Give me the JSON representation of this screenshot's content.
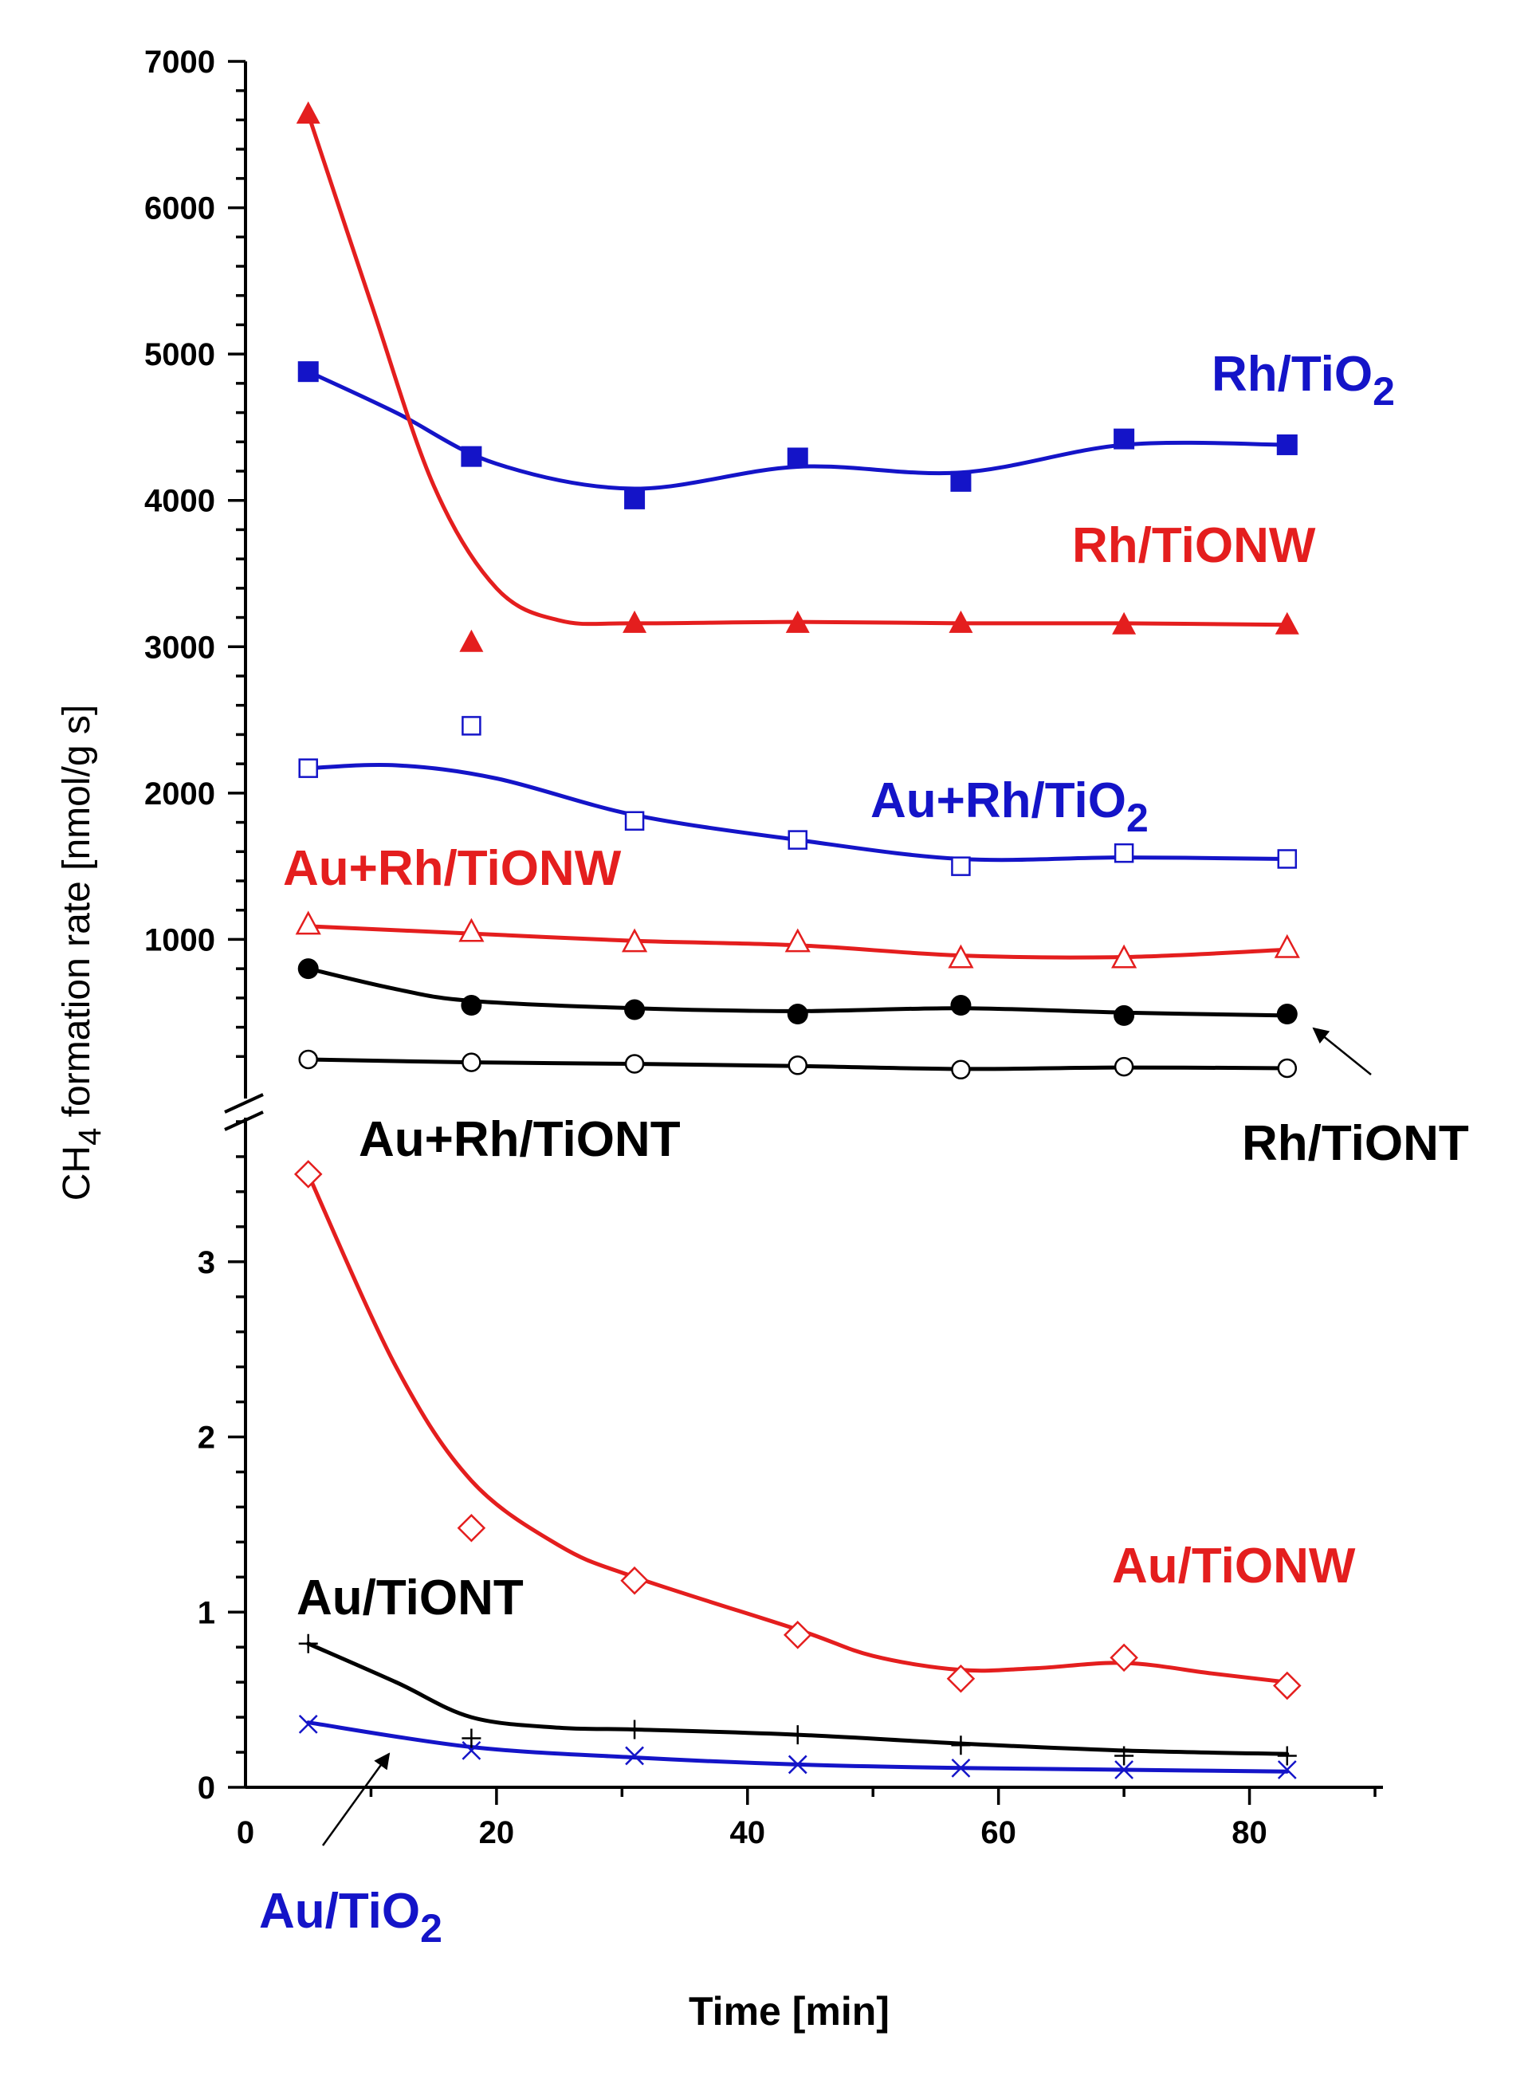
{
  "chart_data": {
    "type": "line",
    "title": "",
    "xlabel": "Time [min]",
    "ylabel_parts": [
      "CH",
      "4",
      " formation rate [nmol/g s]"
    ],
    "xlim": [
      0,
      90
    ],
    "x_ticks": [
      "0",
      "20",
      "40",
      "60",
      "80"
    ],
    "x_tick_values": [
      0,
      20,
      40,
      60,
      80
    ],
    "y_axis_broken": true,
    "upper_panel": {
      "ylim": [
        0,
        7000
      ],
      "y_ticks": [
        "1000",
        "2000",
        "3000",
        "4000",
        "5000",
        "6000",
        "7000"
      ],
      "y_tick_values": [
        1000,
        2000,
        3000,
        4000,
        5000,
        6000,
        7000
      ]
    },
    "lower_panel": {
      "ylim": [
        0,
        3.9
      ],
      "y_ticks": [
        "0",
        "1",
        "2",
        "3"
      ],
      "y_tick_values": [
        0,
        1,
        2,
        3
      ]
    },
    "x": [
      5,
      18,
      31,
      44,
      57,
      70,
      83
    ],
    "series": [
      {
        "id": "rh-tio2",
        "name": "Rh/TiO2",
        "label_parts": [
          "Rh/TiO",
          "2"
        ],
        "panel": "upper",
        "color": "#1414c8",
        "marker": "square-filled",
        "values": [
          4880,
          4300,
          4010,
          4290,
          4130,
          4420,
          4380
        ],
        "fit": [
          [
            5,
            4880
          ],
          [
            12,
            4600
          ],
          [
            20,
            4250
          ],
          [
            31,
            4080
          ],
          [
            44,
            4230
          ],
          [
            57,
            4190
          ],
          [
            70,
            4380
          ],
          [
            83,
            4380
          ]
        ]
      },
      {
        "id": "rh-tionw",
        "name": "Rh/TiONW",
        "label_parts": [
          "Rh/TiONW"
        ],
        "panel": "upper",
        "color": "#e41e1e",
        "marker": "triangle-filled",
        "values": [
          6640,
          3030,
          3160,
          3160,
          3160,
          3150,
          3150
        ],
        "fit": [
          [
            5,
            6640
          ],
          [
            10,
            5350
          ],
          [
            15,
            4100
          ],
          [
            20,
            3400
          ],
          [
            25,
            3180
          ],
          [
            31,
            3160
          ],
          [
            44,
            3170
          ],
          [
            57,
            3160
          ],
          [
            70,
            3160
          ],
          [
            83,
            3150
          ]
        ]
      },
      {
        "id": "au-rh-tio2",
        "name": "Au+Rh/TiO2",
        "label_parts": [
          "Au+Rh/TiO",
          "2"
        ],
        "panel": "upper",
        "color": "#1414c8",
        "marker": "square-open",
        "values": [
          2170,
          2460,
          1810,
          1680,
          1500,
          1590,
          1550
        ],
        "fit": [
          [
            5,
            2170
          ],
          [
            12,
            2190
          ],
          [
            20,
            2100
          ],
          [
            31,
            1850
          ],
          [
            44,
            1680
          ],
          [
            57,
            1550
          ],
          [
            70,
            1560
          ],
          [
            83,
            1550
          ]
        ]
      },
      {
        "id": "au-rh-tionw",
        "name": "Au+Rh/TiONW",
        "label_parts": [
          "Au+Rh/TiONW"
        ],
        "panel": "upper",
        "color": "#e41e1e",
        "marker": "triangle-open",
        "values": [
          1100,
          1050,
          980,
          980,
          870,
          870,
          940
        ],
        "fit": [
          [
            5,
            1090
          ],
          [
            18,
            1040
          ],
          [
            31,
            990
          ],
          [
            44,
            960
          ],
          [
            57,
            890
          ],
          [
            70,
            880
          ],
          [
            83,
            930
          ]
        ]
      },
      {
        "id": "rh-tiont",
        "name": "Rh/TiONT",
        "label_parts": [
          "Rh/TiONT"
        ],
        "panel": "upper",
        "color": "#000000",
        "marker": "circle-filled",
        "values": [
          800,
          550,
          520,
          490,
          550,
          480,
          490
        ],
        "fit": [
          [
            5,
            800
          ],
          [
            12,
            660
          ],
          [
            18,
            580
          ],
          [
            31,
            530
          ],
          [
            44,
            510
          ],
          [
            57,
            530
          ],
          [
            70,
            500
          ],
          [
            83,
            480
          ]
        ]
      },
      {
        "id": "au-rh-tiont",
        "name": "Au+Rh/TiONT",
        "label_parts": [
          "Au+Rh/TiONT"
        ],
        "panel": "upper",
        "color": "#000000",
        "marker": "circle-open",
        "values": [
          180,
          160,
          150,
          140,
          110,
          130,
          120
        ],
        "fit": [
          [
            5,
            180
          ],
          [
            18,
            160
          ],
          [
            31,
            150
          ],
          [
            44,
            135
          ],
          [
            57,
            115
          ],
          [
            70,
            125
          ],
          [
            83,
            120
          ]
        ]
      },
      {
        "id": "au-tionw",
        "name": "Au/TiONW",
        "label_parts": [
          "Au/TiONW"
        ],
        "panel": "lower",
        "color": "#e41e1e",
        "marker": "diamond-open",
        "values": [
          3.5,
          1.48,
          1.18,
          0.87,
          0.62,
          0.74,
          0.58
        ],
        "fit": [
          [
            5,
            3.5
          ],
          [
            12,
            2.4
          ],
          [
            18,
            1.75
          ],
          [
            25,
            1.38
          ],
          [
            31,
            1.2
          ],
          [
            44,
            0.9
          ],
          [
            50,
            0.75
          ],
          [
            57,
            0.67
          ],
          [
            63,
            0.68
          ],
          [
            70,
            0.71
          ],
          [
            77,
            0.65
          ],
          [
            83,
            0.6
          ]
        ]
      },
      {
        "id": "au-tiont",
        "name": "Au/TiONT",
        "label_parts": [
          "Au/TiONT"
        ],
        "panel": "lower",
        "color": "#000000",
        "marker": "plus",
        "values": [
          0.82,
          0.28,
          0.33,
          0.3,
          0.24,
          0.18,
          0.18
        ],
        "fit": [
          [
            5,
            0.82
          ],
          [
            12,
            0.6
          ],
          [
            18,
            0.4
          ],
          [
            25,
            0.34
          ],
          [
            31,
            0.33
          ],
          [
            44,
            0.3
          ],
          [
            57,
            0.25
          ],
          [
            70,
            0.21
          ],
          [
            83,
            0.19
          ]
        ]
      },
      {
        "id": "au-tio2",
        "name": "Au/TiO2",
        "label_parts": [
          "Au/TiO",
          "2"
        ],
        "panel": "lower",
        "color": "#1414c8",
        "marker": "x",
        "values": [
          0.36,
          0.21,
          0.18,
          0.13,
          0.11,
          0.1,
          0.1
        ],
        "fit": [
          [
            5,
            0.37
          ],
          [
            18,
            0.23
          ],
          [
            31,
            0.17
          ],
          [
            44,
            0.13
          ],
          [
            57,
            0.11
          ],
          [
            70,
            0.1
          ],
          [
            83,
            0.09
          ]
        ]
      }
    ]
  }
}
